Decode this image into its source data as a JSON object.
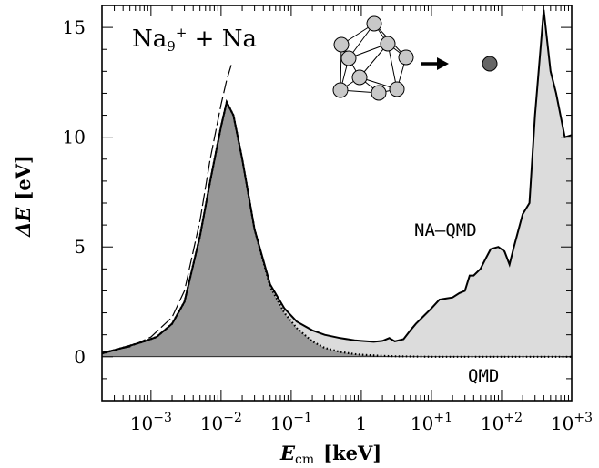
{
  "chart_data": {
    "type": "area",
    "title": "Na",
    "title_sub": "9",
    "title_sup": "+",
    "title_rest": " + Na",
    "xlabel": {
      "main": "E",
      "sub": "cm",
      "unit": "[keV]"
    },
    "ylabel": {
      "main": "ΔE",
      "unit": "[eV]"
    },
    "x_scale": "log",
    "xlim": [
      0.0002,
      1000
    ],
    "ylim": [
      -2,
      16
    ],
    "x_ticks": [
      {
        "value": 0.001,
        "base": "10",
        "exp": "−3"
      },
      {
        "value": 0.01,
        "base": "10",
        "exp": "−2"
      },
      {
        "value": 0.1,
        "base": "10",
        "exp": "−1"
      },
      {
        "value": 1,
        "base": "1",
        "exp": ""
      },
      {
        "value": 10,
        "base": "10",
        "exp": "+1"
      },
      {
        "value": 100,
        "base": "10",
        "exp": "+2"
      },
      {
        "value": 1000,
        "base": "10",
        "exp": "+3"
      }
    ],
    "y_ticks": [
      0,
      5,
      10,
      15
    ],
    "grid": false,
    "series": [
      {
        "name": "NA–QMD",
        "style": "solid",
        "fill": "#dcdcdc",
        "x": [
          0.0002,
          0.0003,
          0.0005,
          0.0008,
          0.0012,
          0.002,
          0.003,
          0.005,
          0.007,
          0.01,
          0.012,
          0.015,
          0.02,
          0.03,
          0.05,
          0.08,
          0.12,
          0.2,
          0.3,
          0.5,
          0.8,
          1,
          1.5,
          2,
          2.5,
          3,
          4,
          5,
          6,
          8,
          10,
          13,
          16,
          20,
          25,
          30,
          35,
          40,
          50,
          60,
          70,
          90,
          110,
          130,
          150,
          200,
          250,
          300,
          400,
          500,
          600,
          800,
          1000
        ],
        "values": [
          0.15,
          0.3,
          0.5,
          0.7,
          0.9,
          1.5,
          2.5,
          5.5,
          8.0,
          10.5,
          11.6,
          11.0,
          9.0,
          5.8,
          3.3,
          2.2,
          1.6,
          1.2,
          1.0,
          0.85,
          0.75,
          0.72,
          0.68,
          0.72,
          0.85,
          0.7,
          0.8,
          1.2,
          1.5,
          1.9,
          2.2,
          2.6,
          2.65,
          2.7,
          2.9,
          3.0,
          3.7,
          3.7,
          4.0,
          4.5,
          4.9,
          5.0,
          4.8,
          4.2,
          5.0,
          6.5,
          7.0,
          11.0,
          15.8,
          13.0,
          12.0,
          10.0,
          10.1
        ]
      },
      {
        "name": "QMD",
        "style": "dotted",
        "fill": "#999999",
        "x": [
          0.0002,
          0.0003,
          0.0005,
          0.0008,
          0.0012,
          0.002,
          0.003,
          0.005,
          0.007,
          0.01,
          0.012,
          0.015,
          0.02,
          0.03,
          0.05,
          0.08,
          0.12,
          0.2,
          0.3,
          0.5,
          0.8,
          1,
          2,
          3,
          5,
          10,
          30,
          100,
          1000
        ],
        "values": [
          0.15,
          0.3,
          0.5,
          0.7,
          0.9,
          1.5,
          2.5,
          5.5,
          8.0,
          10.5,
          11.6,
          11.0,
          9.0,
          5.8,
          3.2,
          2.0,
          1.3,
          0.7,
          0.4,
          0.22,
          0.12,
          0.09,
          0.04,
          0.02,
          0.01,
          0.0,
          0.0,
          0.0,
          0.0
        ]
      },
      {
        "name": "",
        "style": "dashed",
        "fill": "none",
        "x": [
          0.0002,
          0.0005,
          0.001,
          0.002,
          0.003,
          0.005,
          0.007,
          0.01,
          0.012,
          0.014
        ],
        "values": [
          0.2,
          0.45,
          0.9,
          1.8,
          3.0,
          6.2,
          9.0,
          11.5,
          12.6,
          13.3
        ]
      }
    ],
    "annotations": [
      {
        "text": "NA–QMD"
      },
      {
        "text": "QMD"
      }
    ]
  }
}
